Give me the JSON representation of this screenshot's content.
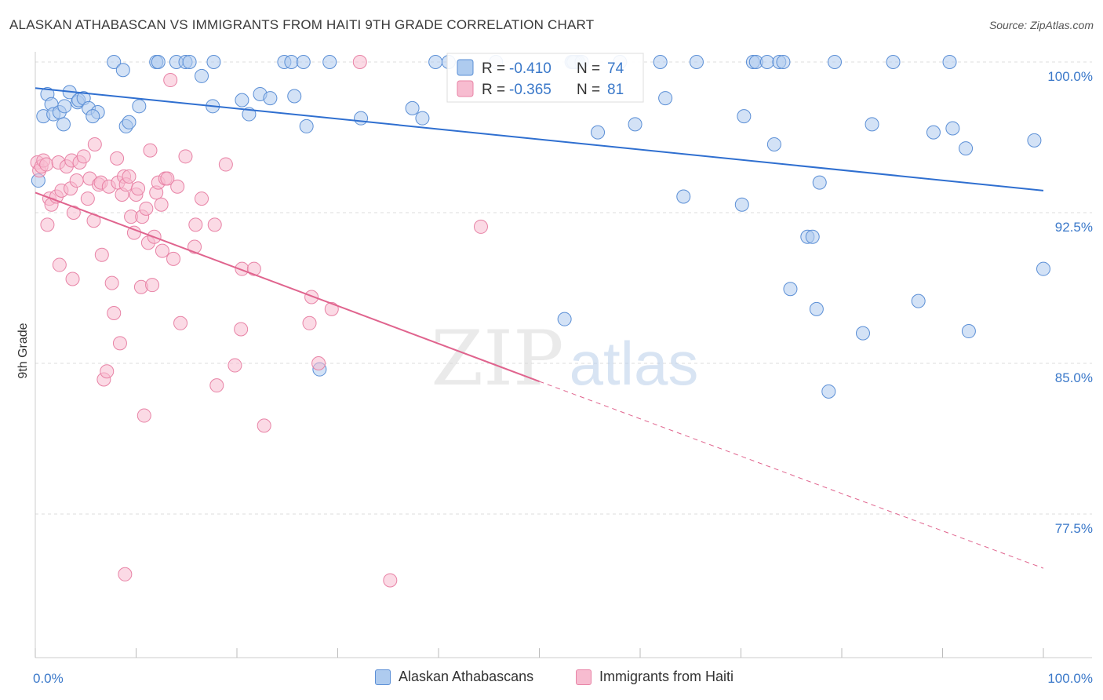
{
  "title": "ALASKAN ATHABASCAN VS IMMIGRANTS FROM HAITI 9TH GRADE CORRELATION CHART",
  "source": "Source: ZipAtlas.com",
  "watermark": {
    "zip": "ZIP",
    "atlas": "atlas"
  },
  "colors": {
    "blue_fill": "#aecbef",
    "blue_stroke": "#5b8fd6",
    "blue_line": "#2f6fd0",
    "pink_fill": "#f7bcd0",
    "pink_stroke": "#e883a6",
    "pink_line": "#e0648e",
    "axis_text_blue": "#3a78c9",
    "grid": "#dddddd"
  },
  "chart_data": {
    "type": "scatter",
    "title": "ALASKAN ATHABASCAN VS IMMIGRANTS FROM HAITI 9TH GRADE CORRELATION CHART",
    "xlabel": "",
    "ylabel": "9th Grade",
    "xlim": [
      0,
      100
    ],
    "ylim": [
      71.0,
      101.0
    ],
    "x_tick_labels": [
      "0.0%",
      "100.0%"
    ],
    "y_ticks": [
      77.5,
      85.0,
      92.5,
      100.0
    ],
    "y_tick_labels": [
      "77.5%",
      "85.0%",
      "92.5%",
      "100.0%"
    ],
    "grid": true,
    "legend_top": [
      {
        "r_label": "R =",
        "r_value": "-0.410",
        "n_label": "N =",
        "n_value": "74"
      },
      {
        "r_label": "R =",
        "r_value": "-0.365",
        "n_label": "N =",
        "n_value": "81"
      }
    ],
    "series": [
      {
        "name": "Alaskan Athabascans",
        "color": "#5b8fd6",
        "r": -0.41,
        "n": 74,
        "trend": {
          "x0": 0,
          "y0": 98.7,
          "x1": 100,
          "y1": 93.6
        },
        "points": [
          [
            0.3,
            94.1
          ],
          [
            0.8,
            97.3
          ],
          [
            1.2,
            98.4
          ],
          [
            1.6,
            97.9
          ],
          [
            1.8,
            97.4
          ],
          [
            2.4,
            97.5
          ],
          [
            2.8,
            96.9
          ],
          [
            2.9,
            97.8
          ],
          [
            3.4,
            98.5
          ],
          [
            4.2,
            98.0
          ],
          [
            4.3,
            98.1
          ],
          [
            4.8,
            98.2
          ],
          [
            5.3,
            97.7
          ],
          [
            6.2,
            97.5
          ],
          [
            5.7,
            97.3
          ],
          [
            7.8,
            100.0
          ],
          [
            8.7,
            99.6
          ],
          [
            9.0,
            96.8
          ],
          [
            9.3,
            97.0
          ],
          [
            10.3,
            97.8
          ],
          [
            12.0,
            100.0
          ],
          [
            12.2,
            100.0
          ],
          [
            14.0,
            100.0
          ],
          [
            14.9,
            100.0
          ],
          [
            15.3,
            100.0
          ],
          [
            16.5,
            99.3
          ],
          [
            17.6,
            97.8
          ],
          [
            17.7,
            100.0
          ],
          [
            20.5,
            98.1
          ],
          [
            21.2,
            97.4
          ],
          [
            22.3,
            98.4
          ],
          [
            23.3,
            98.2
          ],
          [
            24.7,
            100.0
          ],
          [
            25.4,
            100.0
          ],
          [
            25.7,
            98.3
          ],
          [
            26.6,
            100.0
          ],
          [
            26.9,
            96.8
          ],
          [
            29.2,
            100.0
          ],
          [
            32.3,
            97.2
          ],
          [
            37.4,
            97.7
          ],
          [
            38.4,
            97.2
          ],
          [
            39.7,
            100.0
          ],
          [
            41.0,
            100.0
          ],
          [
            45.7,
            100.0
          ],
          [
            52.5,
            87.2
          ],
          [
            53.3,
            100.0
          ],
          [
            53.5,
            100.0
          ],
          [
            53.7,
            100.0
          ],
          [
            53.9,
            100.0
          ],
          [
            53.8,
            100.0
          ],
          [
            53.6,
            100.0
          ],
          [
            53.8,
            100.0
          ],
          [
            53.2,
            100.0
          ],
          [
            53.4,
            100.0
          ],
          [
            53.7,
            100.0
          ],
          [
            53.5,
            100.0
          ],
          [
            53.9,
            100.0
          ],
          [
            53.3,
            100.0
          ],
          [
            53.6,
            100.0
          ],
          [
            53.4,
            100.0
          ],
          [
            53.8,
            100.0
          ],
          [
            53.5,
            100.0
          ],
          [
            53.7,
            100.0
          ],
          [
            53.6,
            100.0
          ],
          [
            53.5,
            100.0
          ],
          [
            53.4,
            100.0
          ],
          [
            53.9,
            100.0
          ],
          [
            53.3,
            100.0
          ],
          [
            53.8,
            100.0
          ],
          [
            53.6,
            100.0
          ],
          [
            53.5,
            100.0
          ],
          [
            53.7,
            100.0
          ],
          [
            53.4,
            100.0
          ],
          [
            53.6,
            100.0
          ]
        ],
        "points_b": [
          [
            55.8,
            96.5
          ],
          [
            58.0,
            100.0
          ],
          [
            59.5,
            96.9
          ],
          [
            62.0,
            100.0
          ],
          [
            62.5,
            98.2
          ],
          [
            64.3,
            93.3
          ],
          [
            65.6,
            100.0
          ],
          [
            70.1,
            92.9
          ],
          [
            70.3,
            97.3
          ],
          [
            71.2,
            100.0
          ],
          [
            71.5,
            100.0
          ],
          [
            72.6,
            100.0
          ],
          [
            73.3,
            95.9
          ],
          [
            73.8,
            100.0
          ],
          [
            74.2,
            100.0
          ],
          [
            74.9,
            88.7
          ],
          [
            76.6,
            91.3
          ],
          [
            77.1,
            91.3
          ],
          [
            77.5,
            87.7
          ],
          [
            77.8,
            94.0
          ],
          [
            78.7,
            83.6
          ],
          [
            79.3,
            100.0
          ],
          [
            82.1,
            86.5
          ],
          [
            83.0,
            96.9
          ],
          [
            85.1,
            100.0
          ],
          [
            87.6,
            88.1
          ],
          [
            89.1,
            96.5
          ],
          [
            90.7,
            100.0
          ],
          [
            91.0,
            96.7
          ],
          [
            92.3,
            95.7
          ],
          [
            92.6,
            86.6
          ],
          [
            99.1,
            96.1
          ],
          [
            100.0,
            89.7
          ],
          [
            28.2,
            84.7
          ],
          [
            54.2,
            100.0
          ]
        ]
      },
      {
        "name": "Immigrants from Haiti",
        "color": "#e883a6",
        "r": -0.365,
        "n": 81,
        "trend": {
          "x0": 0,
          "y0": 93.5,
          "x1": 50,
          "y1": 84.1,
          "x_dash_end": 100,
          "y_dash_end": 74.8
        },
        "points": [
          [
            0.2,
            95.0
          ],
          [
            0.4,
            94.6
          ],
          [
            0.6,
            94.8
          ],
          [
            0.8,
            95.1
          ],
          [
            1.1,
            94.9
          ],
          [
            1.2,
            91.9
          ],
          [
            1.4,
            93.2
          ],
          [
            1.6,
            92.9
          ],
          [
            2.1,
            93.3
          ],
          [
            2.3,
            95.0
          ],
          [
            2.4,
            89.9
          ],
          [
            2.6,
            93.6
          ],
          [
            3.1,
            94.8
          ],
          [
            3.5,
            93.7
          ],
          [
            3.6,
            95.1
          ],
          [
            3.7,
            89.2
          ],
          [
            3.8,
            92.5
          ],
          [
            4.1,
            94.1
          ],
          [
            4.4,
            95.0
          ],
          [
            4.8,
            95.3
          ],
          [
            5.2,
            93.2
          ],
          [
            5.4,
            94.2
          ],
          [
            5.8,
            92.1
          ],
          [
            5.9,
            95.9
          ],
          [
            6.3,
            93.9
          ],
          [
            6.5,
            94.0
          ],
          [
            6.6,
            90.4
          ],
          [
            6.8,
            84.2
          ],
          [
            7.1,
            84.6
          ],
          [
            7.3,
            93.8
          ],
          [
            7.6,
            89.0
          ],
          [
            7.8,
            87.5
          ],
          [
            8.1,
            95.2
          ],
          [
            8.2,
            94.0
          ],
          [
            8.4,
            86.0
          ],
          [
            8.6,
            93.4
          ],
          [
            8.8,
            94.3
          ],
          [
            8.9,
            74.5
          ],
          [
            9.0,
            93.9
          ],
          [
            9.3,
            94.3
          ],
          [
            9.5,
            92.3
          ],
          [
            9.8,
            91.5
          ],
          [
            10.0,
            93.4
          ],
          [
            10.2,
            93.7
          ],
          [
            10.5,
            88.8
          ],
          [
            10.6,
            92.3
          ],
          [
            10.8,
            82.4
          ],
          [
            11.0,
            92.7
          ],
          [
            11.2,
            91.0
          ],
          [
            11.4,
            95.6
          ],
          [
            11.6,
            88.9
          ],
          [
            11.8,
            91.3
          ],
          [
            12.0,
            93.5
          ],
          [
            12.2,
            94.0
          ],
          [
            12.5,
            92.9
          ],
          [
            12.6,
            90.6
          ],
          [
            12.9,
            94.2
          ],
          [
            13.1,
            94.2
          ],
          [
            13.4,
            99.1
          ],
          [
            13.7,
            90.2
          ],
          [
            14.1,
            93.8
          ],
          [
            14.4,
            87.0
          ],
          [
            14.9,
            95.3
          ],
          [
            15.8,
            90.8
          ],
          [
            15.9,
            91.9
          ],
          [
            16.5,
            93.2
          ],
          [
            17.8,
            91.9
          ],
          [
            18.0,
            83.9
          ],
          [
            18.9,
            94.9
          ],
          [
            19.8,
            84.9
          ],
          [
            20.4,
            86.7
          ],
          [
            20.5,
            89.7
          ],
          [
            21.7,
            89.7
          ],
          [
            22.7,
            81.9
          ],
          [
            27.2,
            87.0
          ],
          [
            27.4,
            88.3
          ],
          [
            28.1,
            85.0
          ],
          [
            29.4,
            87.7
          ],
          [
            32.2,
            100.0
          ],
          [
            35.2,
            74.2
          ],
          [
            44.2,
            91.8
          ]
        ]
      }
    ]
  },
  "legend_bottom": [
    {
      "label": "Alaskan Athabascans"
    },
    {
      "label": "Immigrants from Haiti"
    }
  ]
}
